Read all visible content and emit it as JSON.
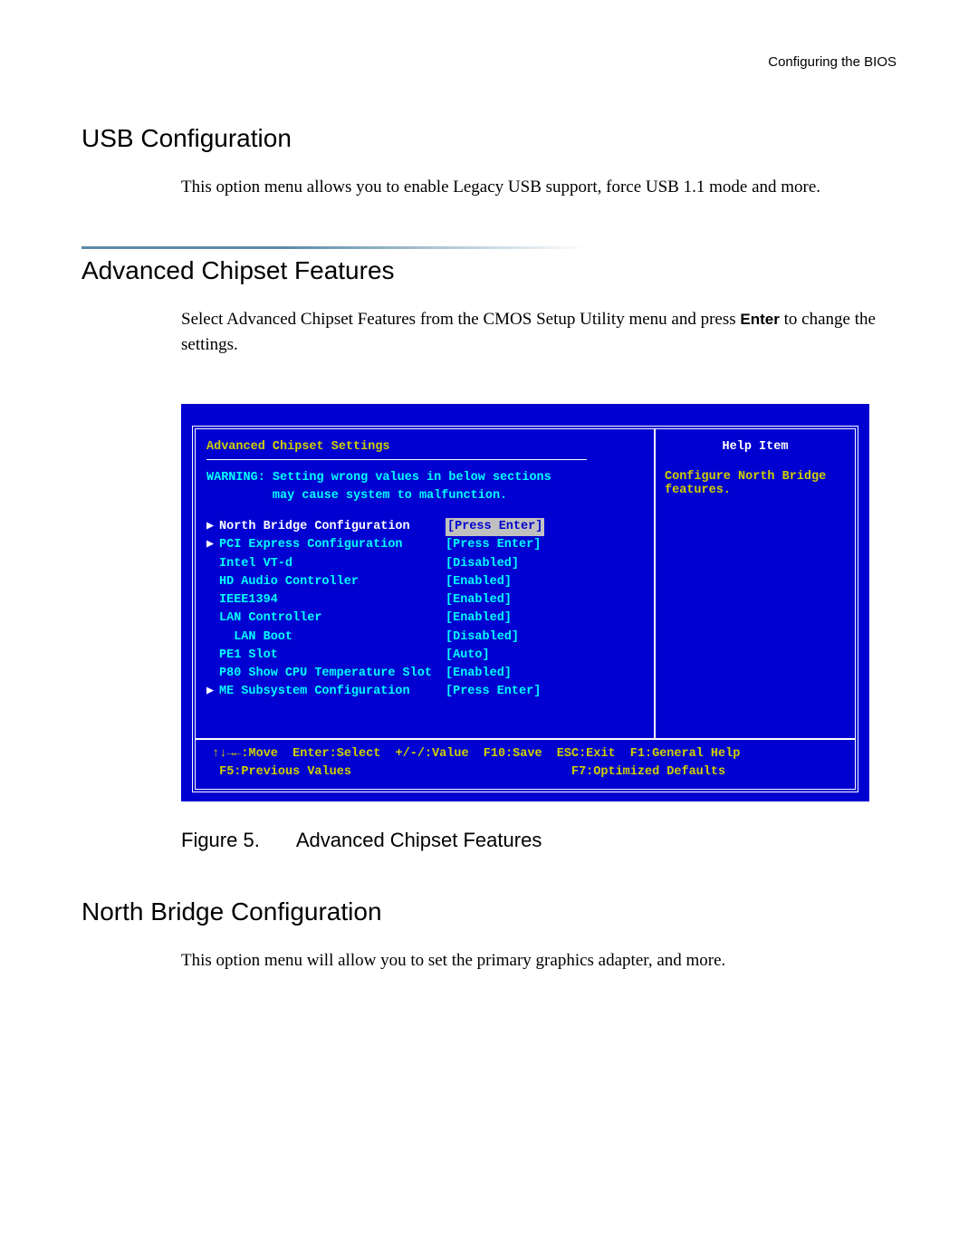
{
  "page_header": "Configuring the BIOS",
  "section1": {
    "title": "USB Configuration",
    "body": "This option menu allows you to enable Legacy USB support, force USB 1.1 mode and more."
  },
  "section2": {
    "title": "Advanced Chipset Features",
    "body_pre": "Select Advanced Chipset Features from the CMOS Setup Utility menu and press ",
    "body_bold": "Enter",
    "body_post": " to change the settings."
  },
  "bios": {
    "heading": "Advanced Chipset Settings",
    "warning_l1": "WARNING: Setting wrong values in below sections",
    "warning_l2": "         may cause system to malfunction.",
    "rows": {
      "north_bridge_label": "North Bridge Configuration",
      "north_bridge_val": "[Press Enter]",
      "pci_label": "PCI Express Configuration",
      "pci_val": "[Press Enter]",
      "vtd_label": "Intel VT-d",
      "vtd_val": "[Disabled]",
      "hdaudio_label": "HD Audio Controller",
      "hdaudio_val": "[Enabled]",
      "ieee_label": "IEEE1394",
      "ieee_val": "[Enabled]",
      "lanctrl_label": "LAN Controller",
      "lanctrl_val": "[Enabled]",
      "lanboot_label": "  LAN Boot",
      "lanboot_val": "[Disabled]",
      "pe1_label": "PE1 Slot",
      "pe1_val": "[Auto]",
      "p80_label": "P80 Show CPU Temperature Slot",
      "p80_val": "[Enabled]",
      "me_label": "ME Subsystem Configuration",
      "me_val": "[Press Enter]"
    },
    "help_title": "Help Item",
    "help_body": "Configure North Bridge features.",
    "footer_l1": "↑↓→←:Move  Enter:Select  +/-/:Value  F10:Save  ESC:Exit  F1:General Help",
    "footer_l2": " F5:Previous Values                              F7:Optimized Defaults"
  },
  "figure": {
    "num": "Figure 5.",
    "title": "Advanced Chipset Features"
  },
  "section3": {
    "title": "North Bridge Configuration",
    "body": "This option menu will allow you to set the primary graphics adapter, and more."
  },
  "colors": {
    "bios_bg": "#0000d0",
    "bios_yellow": "#d0d000",
    "bios_cyan": "#00ffff",
    "bios_highlight_bg": "#c0c0c0",
    "divider_color": "#5b8ba8"
  }
}
